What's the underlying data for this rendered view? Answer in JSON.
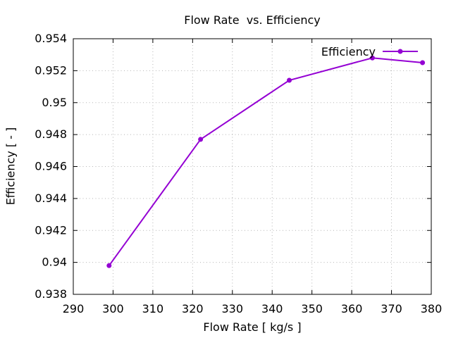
{
  "figure": {
    "title": "Flow Rate  vs. Efficiency",
    "xlabel": "Flow Rate [ kg/s ]",
    "ylabel": "Efficiency [ - ]"
  },
  "chart_data": {
    "type": "line",
    "title": "Flow Rate  vs. Efficiency",
    "xlabel": "Flow Rate [ kg/s ]",
    "ylabel": "Efficiency [ - ]",
    "xlim": [
      290,
      380
    ],
    "ylim": [
      0.938,
      0.954
    ],
    "xticks": {
      "values": [
        290,
        300,
        310,
        320,
        330,
        340,
        350,
        360,
        370,
        380
      ],
      "labels": [
        "290",
        "300",
        "310",
        "320",
        "330",
        "340",
        "350",
        "360",
        "370",
        "380"
      ]
    },
    "yticks": {
      "values": [
        0.938,
        0.94,
        0.942,
        0.944,
        0.946,
        0.948,
        0.95,
        0.952,
        0.954
      ],
      "labels": [
        "0.938",
        "0.94",
        "0.942",
        "0.944",
        "0.946",
        "0.948",
        "0.95",
        "0.952",
        "0.954"
      ]
    },
    "grid": true,
    "grid_style": "dotted",
    "legend": {
      "label": "Efficiency",
      "position": "top-right-inside"
    },
    "series": [
      {
        "name": "Efficiency",
        "x": [
          299.0,
          322.0,
          344.3,
          365.2,
          377.8
        ],
        "y": [
          0.9398,
          0.9477,
          0.9514,
          0.9528,
          0.9525
        ],
        "color": "#9400d3",
        "marker": "filled-circle",
        "line_width": 2
      }
    ]
  },
  "colors": {
    "line": "#9400d3",
    "grid": "#b4b4b4",
    "axis": "#000000",
    "text": "#000000",
    "background": "#ffffff"
  }
}
